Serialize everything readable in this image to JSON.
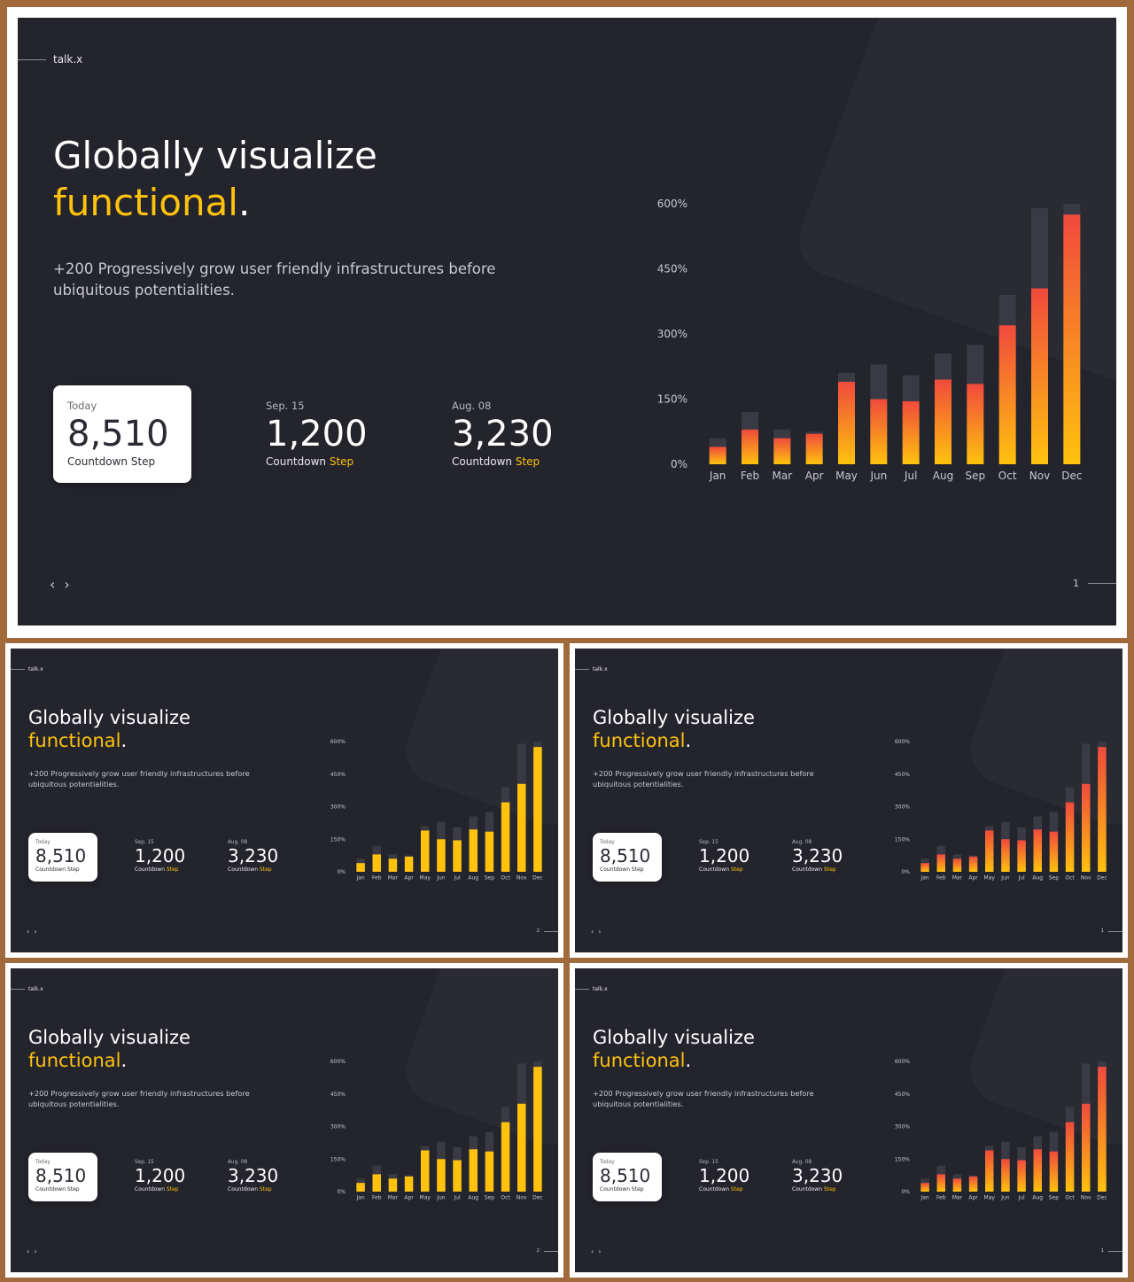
{
  "colors": {
    "accent": "#ffc20e",
    "bar_top": "#f04a3c",
    "bar_bottom": "#ffc20e",
    "bar_track": "#3a3a44",
    "slide_bg": "#24242c"
  },
  "slides": [
    {
      "brand": "talk.x",
      "title_line1": "Globally visualize",
      "title_line2": "functional",
      "title_dot": ".",
      "description_line1": "+200 Progressively grow user friendly infrastructures before",
      "description_line2": "ubiquitous potentialities.",
      "stats": [
        {
          "label": "Today",
          "value": "8,510",
          "sub": "Countdown Step",
          "sub_highlight": ""
        },
        {
          "label": "Sep. 15",
          "value": "1,200",
          "sub": "Countdown ",
          "sub_highlight": "Step"
        },
        {
          "label": "Aug. 08",
          "value": "3,230",
          "sub": "Countdown ",
          "sub_highlight": "Step"
        }
      ],
      "nav_prev": "‹",
      "nav_next": "›",
      "page_number": "1",
      "bar_style": "gradient"
    },
    {
      "brand": "talk.x",
      "title_line1": "Globally visualize",
      "title_line2": "functional",
      "title_dot": ".",
      "description_line1": "+200 Progressively grow user friendly infrastructures before",
      "description_line2": "ubiquitous potentialities.",
      "stats": [
        {
          "label": "Today",
          "value": "8,510",
          "sub": "Countdown Step",
          "sub_highlight": ""
        },
        {
          "label": "Sep. 15",
          "value": "1,200",
          "sub": "Countdown ",
          "sub_highlight": "Step"
        },
        {
          "label": "Aug. 08",
          "value": "3,230",
          "sub": "Countdown ",
          "sub_highlight": "Step"
        }
      ],
      "nav_prev": "‹",
      "nav_next": "›",
      "page_number": "2",
      "bar_style": "solid"
    },
    {
      "brand": "talk.x",
      "title_line1": "Globally visualize",
      "title_line2": "functional",
      "title_dot": ".",
      "description_line1": "+200 Progressively grow user friendly infrastructures before",
      "description_line2": "ubiquitous potentialities.",
      "stats": [
        {
          "label": "Today",
          "value": "8,510",
          "sub": "Countdown Step",
          "sub_highlight": ""
        },
        {
          "label": "Sep. 15",
          "value": "1,200",
          "sub": "Countdown ",
          "sub_highlight": "Step"
        },
        {
          "label": "Aug. 08",
          "value": "3,230",
          "sub": "Countdown ",
          "sub_highlight": "Step"
        }
      ],
      "nav_prev": "‹",
      "nav_next": "›",
      "page_number": "1",
      "bar_style": "gradient"
    },
    {
      "brand": "talk.x",
      "title_line1": "Globally visualize",
      "title_line2": "functional",
      "title_dot": ".",
      "description_line1": "+200 Progressively grow user friendly infrastructures before",
      "description_line2": "ubiquitous potentialities.",
      "stats": [
        {
          "label": "Today",
          "value": "8,510",
          "sub": "Countdown Step",
          "sub_highlight": ""
        },
        {
          "label": "Sep. 15",
          "value": "1,200",
          "sub": "Countdown ",
          "sub_highlight": "Step"
        },
        {
          "label": "Aug. 08",
          "value": "3,230",
          "sub": "Countdown ",
          "sub_highlight": "Step"
        }
      ],
      "nav_prev": "‹",
      "nav_next": "›",
      "page_number": "2",
      "bar_style": "solid"
    },
    {
      "brand": "talk.x",
      "title_line1": "Globally visualize",
      "title_line2": "functional",
      "title_dot": ".",
      "description_line1": "+200 Progressively grow user friendly infrastructures before",
      "description_line2": "ubiquitous potentialities.",
      "stats": [
        {
          "label": "Today",
          "value": "8,510",
          "sub": "Countdown Step",
          "sub_highlight": ""
        },
        {
          "label": "Sep. 15",
          "value": "1,200",
          "sub": "Countdown ",
          "sub_highlight": "Step"
        },
        {
          "label": "Aug. 08",
          "value": "3,230",
          "sub": "Countdown ",
          "sub_highlight": "Step"
        }
      ],
      "nav_prev": "‹",
      "nav_next": "›",
      "page_number": "1",
      "bar_style": "gradient"
    }
  ],
  "chart_data": {
    "type": "bar",
    "title": "",
    "xlabel": "",
    "ylabel": "",
    "categories": [
      "Jan",
      "Feb",
      "Mar",
      "Apr",
      "May",
      "Jun",
      "Jul",
      "Aug",
      "Sep",
      "Oct",
      "Nov",
      "Dec"
    ],
    "y_ticks": [
      "0%",
      "150%",
      "300%",
      "450%",
      "600%"
    ],
    "ylim": [
      0,
      600
    ],
    "series": [
      {
        "values": [
          40,
          80,
          60,
          70,
          190,
          150,
          145,
          195,
          185,
          320,
          405,
          575
        ]
      },
      {
        "values": [
          60,
          120,
          80,
          75,
          210,
          230,
          205,
          255,
          275,
          390,
          590,
          600
        ]
      }
    ],
    "grid": false,
    "legend": "none"
  }
}
